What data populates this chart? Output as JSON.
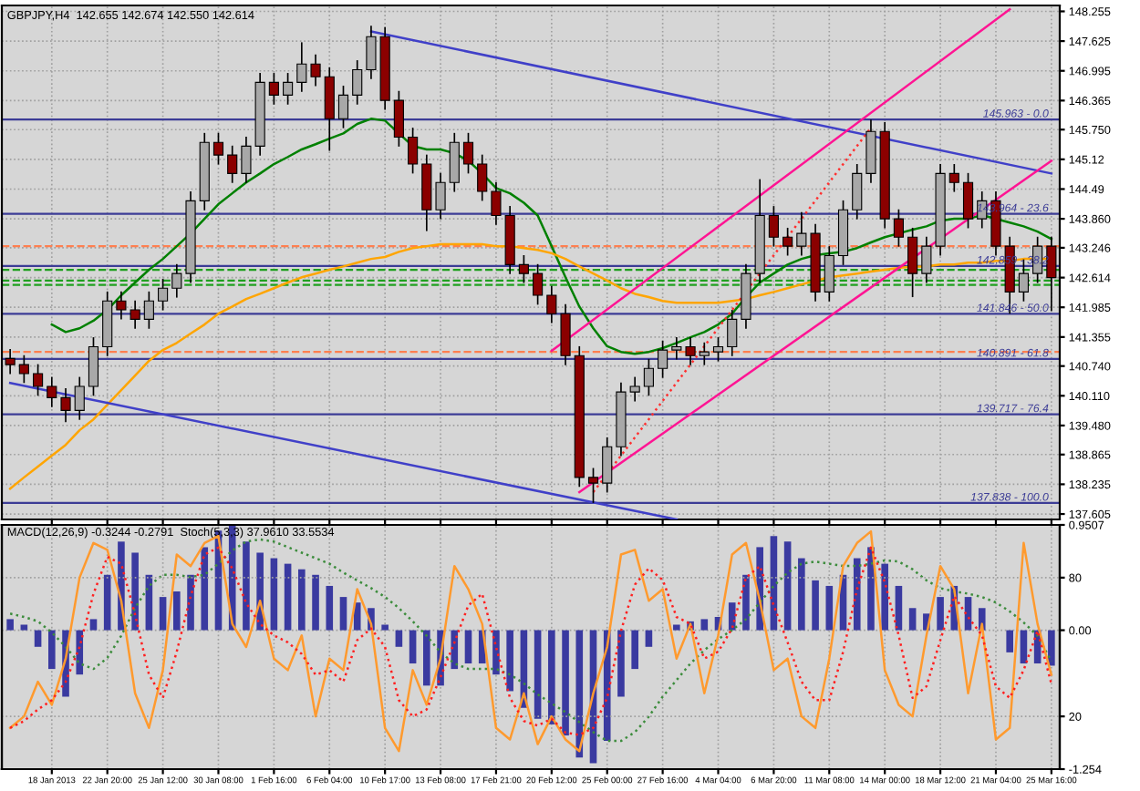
{
  "chart_data": [
    {
      "type": "candlestick",
      "title": "GBPJPY,H4  142.655 142.674 142.550 142.614",
      "categories": [
        null,
        null,
        null,
        null,
        null,
        null,
        null,
        null,
        null,
        null,
        null,
        null,
        null,
        null,
        null,
        null,
        null,
        null,
        null,
        null,
        null,
        null,
        null,
        null,
        null,
        null,
        null,
        null,
        null,
        null,
        null,
        null,
        null,
        null,
        null,
        null,
        null,
        null,
        null,
        null,
        null,
        null,
        null,
        null,
        null,
        null,
        null,
        null,
        null,
        null,
        null,
        null,
        null,
        null,
        null,
        null,
        null,
        null,
        null,
        null,
        null,
        null,
        null,
        null,
        null,
        null,
        null,
        null,
        null,
        null,
        null,
        null,
        null,
        null,
        null,
        null
      ],
      "ohlc": [
        [
          140.9,
          141.1,
          140.57,
          140.77
        ],
        [
          140.77,
          140.97,
          140.38,
          140.58
        ],
        [
          140.58,
          140.78,
          140.11,
          140.31
        ],
        [
          140.31,
          140.51,
          139.87,
          140.07
        ],
        [
          140.07,
          140.27,
          139.55,
          139.8
        ],
        [
          139.8,
          140.51,
          139.6,
          140.31
        ],
        [
          140.31,
          141.35,
          140.11,
          141.15
        ],
        [
          141.15,
          142.32,
          140.95,
          142.12
        ],
        [
          142.12,
          142.32,
          141.73,
          141.93
        ],
        [
          141.93,
          142.13,
          141.53,
          141.73
        ],
        [
          141.73,
          142.32,
          141.53,
          142.12
        ],
        [
          142.12,
          142.59,
          141.92,
          142.39
        ],
        [
          142.39,
          142.9,
          142.19,
          142.7
        ],
        [
          142.7,
          144.44,
          142.5,
          144.24
        ],
        [
          144.24,
          145.68,
          144.04,
          145.48
        ],
        [
          145.48,
          145.68,
          145.01,
          145.21
        ],
        [
          145.21,
          145.41,
          144.62,
          144.82
        ],
        [
          144.82,
          145.6,
          144.62,
          145.4
        ],
        [
          145.4,
          146.95,
          145.2,
          146.75
        ],
        [
          146.75,
          146.95,
          146.28,
          146.48
        ],
        [
          146.48,
          146.95,
          146.28,
          146.75
        ],
        [
          146.75,
          147.6,
          146.55,
          147.14
        ],
        [
          147.14,
          147.34,
          146.67,
          146.87
        ],
        [
          146.87,
          147.07,
          145.3,
          145.98
        ],
        [
          145.98,
          146.68,
          145.78,
          146.48
        ],
        [
          146.48,
          147.22,
          146.28,
          147.02
        ],
        [
          147.02,
          147.95,
          146.82,
          147.72
        ],
        [
          147.72,
          147.92,
          146.17,
          146.37
        ],
        [
          146.37,
          146.57,
          145.39,
          145.59
        ],
        [
          145.59,
          145.79,
          144.82,
          145.02
        ],
        [
          145.02,
          145.22,
          143.6,
          144.05
        ],
        [
          144.05,
          144.83,
          143.85,
          144.63
        ],
        [
          144.63,
          145.68,
          144.43,
          145.48
        ],
        [
          145.48,
          145.68,
          144.82,
          145.02
        ],
        [
          145.02,
          145.22,
          144.24,
          144.44
        ],
        [
          144.44,
          144.64,
          143.73,
          143.93
        ],
        [
          143.93,
          144.13,
          142.69,
          142.89
        ],
        [
          142.89,
          143.09,
          142.5,
          142.7
        ],
        [
          142.7,
          142.9,
          142.04,
          142.24
        ],
        [
          142.24,
          142.44,
          141.65,
          141.85
        ],
        [
          141.85,
          142.05,
          140.76,
          140.96
        ],
        [
          140.96,
          141.16,
          138.18,
          138.38
        ],
        [
          138.38,
          138.58,
          137.84,
          138.26
        ],
        [
          138.26,
          139.23,
          138.06,
          139.03
        ],
        [
          139.03,
          140.39,
          138.83,
          140.19
        ],
        [
          140.19,
          140.51,
          139.99,
          140.31
        ],
        [
          140.31,
          140.89,
          140.11,
          140.69
        ],
        [
          140.69,
          141.28,
          140.49,
          141.08
        ],
        [
          141.08,
          141.35,
          140.88,
          141.15
        ],
        [
          141.15,
          141.35,
          140.76,
          140.96
        ],
        [
          140.96,
          141.24,
          140.76,
          141.04
        ],
        [
          141.04,
          141.35,
          140.84,
          141.15
        ],
        [
          141.15,
          141.93,
          140.95,
          141.73
        ],
        [
          141.73,
          142.9,
          141.53,
          142.7
        ],
        [
          142.7,
          144.7,
          142.5,
          143.93
        ],
        [
          143.93,
          144.13,
          143.27,
          143.47
        ],
        [
          143.47,
          143.67,
          143.08,
          143.28
        ],
        [
          143.28,
          144.0,
          143.08,
          143.55
        ],
        [
          143.55,
          143.75,
          142.11,
          142.31
        ],
        [
          142.31,
          143.28,
          142.11,
          143.08
        ],
        [
          143.08,
          144.25,
          142.88,
          144.05
        ],
        [
          144.05,
          145.02,
          143.85,
          144.82
        ],
        [
          144.82,
          145.963,
          144.62,
          145.71
        ],
        [
          145.71,
          145.91,
          143.66,
          143.86
        ],
        [
          143.86,
          144.06,
          143.27,
          143.47
        ],
        [
          143.47,
          143.67,
          142.2,
          142.7
        ],
        [
          142.7,
          143.48,
          142.5,
          143.28
        ],
        [
          143.28,
          145.02,
          143.08,
          144.82
        ],
        [
          144.82,
          145.02,
          144.43,
          144.63
        ],
        [
          144.63,
          144.83,
          143.66,
          143.86
        ],
        [
          143.86,
          144.44,
          143.66,
          144.24
        ],
        [
          144.24,
          144.44,
          143.08,
          143.28
        ],
        [
          143.28,
          143.48,
          141.85,
          142.31
        ],
        [
          142.31,
          143.0,
          142.11,
          142.7
        ],
        [
          142.7,
          143.48,
          142.5,
          143.28
        ],
        [
          143.28,
          143.48,
          141.9,
          142.614
        ]
      ],
      "colors": [
        "#8b0000",
        "#8b0000",
        "#8b0000",
        "#8b0000",
        "#8b0000",
        "#a8a8a8",
        "#a8a8a8",
        "#a8a8a8",
        "#8b0000",
        "#8b0000",
        "#a8a8a8",
        "#a8a8a8",
        "#a8a8a8",
        "#a8a8a8",
        "#a8a8a8",
        "#8b0000",
        "#8b0000",
        "#a8a8a8",
        "#a8a8a8",
        "#8b0000",
        "#a8a8a8",
        "#a8a8a8",
        "#8b0000",
        "#8b0000",
        "#a8a8a8",
        "#a8a8a8",
        "#a8a8a8",
        "#8b0000",
        "#8b0000",
        "#8b0000",
        "#8b0000",
        "#a8a8a8",
        "#a8a8a8",
        "#8b0000",
        "#8b0000",
        "#8b0000",
        "#8b0000",
        "#8b0000",
        "#8b0000",
        "#8b0000",
        "#8b0000",
        "#8b0000",
        "#8b0000",
        "#a8a8a8",
        "#a8a8a8",
        "#a8a8a8",
        "#a8a8a8",
        "#a8a8a8",
        "#a8a8a8",
        "#8b0000",
        "#a8a8a8",
        "#a8a8a8",
        "#a8a8a8",
        "#a8a8a8",
        "#a8a8a8",
        "#8b0000",
        "#8b0000",
        "#a8a8a8",
        "#8b0000",
        "#a8a8a8",
        "#a8a8a8",
        "#a8a8a8",
        "#a8a8a8",
        "#8b0000",
        "#8b0000",
        "#8b0000",
        "#a8a8a8",
        "#a8a8a8",
        "#8b0000",
        "#8b0000",
        "#a8a8a8",
        "#8b0000",
        "#8b0000",
        "#a8a8a8",
        "#a8a8a8",
        "#8b0000"
      ],
      "series": [
        {
          "type": "line",
          "color": "#008000",
          "values": [
            null,
            null,
            null,
            141.62,
            141.46,
            141.54,
            141.7,
            141.93,
            142.24,
            142.51,
            142.78,
            143.01,
            143.28,
            143.55,
            143.86,
            144.17,
            144.4,
            144.63,
            144.82,
            145.02,
            145.17,
            145.33,
            145.44,
            145.56,
            145.67,
            145.87,
            145.98,
            145.94,
            145.67,
            145.4,
            145.33,
            145.33,
            145.25,
            145.09,
            144.82,
            144.51,
            144.4,
            144.2,
            143.93,
            143.28,
            142.62,
            142.0,
            141.54,
            141.16,
            141.04,
            141.0,
            141.04,
            141.12,
            141.23,
            141.35,
            141.46,
            141.62,
            141.85,
            142.2,
            142.51,
            142.7,
            142.89,
            143.01,
            143.09,
            143.13,
            143.16,
            143.24,
            143.36,
            143.47,
            143.55,
            143.63,
            143.7,
            143.82,
            143.86,
            143.86,
            143.94,
            null,
            143.78,
            143.7,
            143.59,
            143.43
          ]
        },
        {
          "type": "line",
          "color": "#ffa500",
          "values": [
            138.14,
            138.38,
            138.61,
            138.84,
            139.07,
            139.38,
            139.61,
            139.92,
            140.23,
            140.54,
            140.85,
            141.08,
            141.23,
            141.43,
            141.62,
            141.85,
            142.0,
            142.16,
            142.27,
            142.39,
            142.51,
            142.62,
            142.7,
            142.78,
            142.85,
            142.93,
            143.01,
            143.05,
            143.16,
            143.24,
            143.28,
            143.32,
            143.32,
            143.32,
            143.32,
            143.28,
            143.28,
            143.24,
            143.2,
            143.13,
            143.01,
            142.85,
            142.7,
            142.55,
            142.39,
            142.27,
            142.2,
            142.12,
            142.08,
            142.08,
            142.08,
            142.08,
            142.12,
            142.16,
            142.24,
            142.31,
            142.39,
            142.47,
            142.55,
            142.62,
            142.66,
            142.7,
            142.74,
            142.78,
            142.82,
            142.85,
            142.85,
            142.89,
            142.89,
            142.93,
            142.93,
            142.97,
            142.97,
            143.01,
            143.01,
            143.01
          ]
        },
        {
          "type": "line",
          "color": "#4040c8",
          "values": [
            null,
            null,
            null,
            null,
            null,
            null,
            null,
            null,
            null,
            null,
            null,
            null,
            null,
            null,
            null,
            null,
            null,
            null,
            null,
            null,
            null,
            null,
            null,
            null,
            null,
            null,
            147.83,
            null,
            null,
            null,
            null,
            null,
            null,
            null,
            null,
            null,
            null,
            null,
            null,
            null,
            null,
            null,
            null,
            null,
            null,
            null,
            null,
            null,
            null,
            null,
            null,
            null,
            null,
            null,
            null,
            null,
            null,
            null,
            null,
            null,
            null,
            null,
            null,
            null,
            null,
            null,
            null,
            null,
            null,
            null,
            null,
            null,
            null,
            null,
            null,
            144.82
          ]
        },
        {
          "type": "line",
          "color": "#4040c8",
          "values": [
            140.38,
            null,
            null,
            null,
            null,
            null,
            null,
            null,
            null,
            null,
            null,
            null,
            null,
            null,
            null,
            null,
            null,
            null,
            null,
            null,
            null,
            null,
            null,
            null,
            null,
            null,
            null,
            null,
            null,
            null,
            null,
            null,
            null,
            null,
            null,
            null,
            null,
            null,
            null,
            null,
            null,
            null,
            null,
            null,
            null,
            null,
            null,
            null,
            137.49,
            null,
            null,
            null,
            null,
            null,
            null,
            null,
            null,
            null,
            null,
            null,
            null,
            null,
            null,
            null,
            null,
            null,
            null,
            null,
            null,
            null,
            null,
            null,
            null,
            null,
            null,
            null
          ]
        },
        {
          "type": "line",
          "color": "#ff1493",
          "values": [
            null,
            null,
            null,
            null,
            null,
            null,
            null,
            null,
            null,
            null,
            null,
            null,
            null,
            null,
            null,
            null,
            null,
            null,
            null,
            null,
            null,
            null,
            null,
            null,
            null,
            null,
            null,
            null,
            null,
            null,
            null,
            null,
            null,
            null,
            null,
            null,
            null,
            null,
            null,
            141.06,
            null,
            null,
            null,
            null,
            null,
            null,
            null,
            null,
            null,
            null,
            null,
            null,
            null,
            null,
            null,
            null,
            null,
            null,
            null,
            null,
            null,
            null,
            null,
            null,
            null,
            null,
            null,
            null,
            null,
            null,
            null,
            null,
            148.3,
            null,
            null,
            null
          ]
        },
        {
          "type": "line",
          "color": "#ff1493",
          "values": [
            null,
            null,
            null,
            null,
            null,
            null,
            null,
            null,
            null,
            null,
            null,
            null,
            null,
            null,
            null,
            null,
            null,
            null,
            null,
            null,
            null,
            null,
            null,
            null,
            null,
            null,
            null,
            null,
            null,
            null,
            null,
            null,
            null,
            null,
            null,
            null,
            null,
            null,
            null,
            null,
            null,
            138.07,
            null,
            null,
            null,
            null,
            null,
            null,
            null,
            null,
            null,
            null,
            null,
            null,
            null,
            null,
            null,
            null,
            null,
            null,
            null,
            null,
            null,
            null,
            null,
            null,
            null,
            null,
            null,
            null,
            null,
            null,
            null,
            null,
            null,
            145.09
          ]
        },
        {
          "type": "line",
          "color": "#ff3030",
          "line_style": "dotted",
          "values": [
            null,
            null,
            null,
            null,
            null,
            null,
            null,
            null,
            null,
            null,
            null,
            null,
            null,
            null,
            null,
            null,
            null,
            null,
            null,
            null,
            null,
            null,
            null,
            null,
            null,
            null,
            null,
            null,
            null,
            null,
            null,
            null,
            null,
            null,
            null,
            null,
            null,
            null,
            null,
            null,
            null,
            null,
            138.07,
            null,
            null,
            null,
            null,
            null,
            null,
            null,
            null,
            null,
            null,
            null,
            null,
            null,
            null,
            null,
            null,
            null,
            null,
            null,
            145.79,
            null,
            null,
            null,
            null,
            null,
            null,
            null,
            null,
            null,
            null,
            null,
            null,
            null
          ]
        }
      ],
      "ref_lines": [
        {
          "axis": "y",
          "value": 145.963,
          "label": "145.963 - 0.0",
          "color": "#3c3c96"
        },
        {
          "axis": "y",
          "value": 143.964,
          "label": "143.964 - 23.6",
          "color": "#3c3c96"
        },
        {
          "axis": "y",
          "value": 142.859,
          "label": "142.859 - 38.2",
          "color": "#3c3c96"
        },
        {
          "axis": "y",
          "value": 141.846,
          "label": "141.846 - 50.0",
          "color": "#3c3c96"
        },
        {
          "axis": "y",
          "value": 140.891,
          "label": "140.891 - 61.8",
          "color": "#3c3c96"
        },
        {
          "axis": "y",
          "value": 139.717,
          "label": "139.717 - 76.4",
          "color": "#3c3c96"
        },
        {
          "axis": "y",
          "value": 137.838,
          "label": "137.838 - 100.0",
          "color": "#3c3c96"
        },
        {
          "axis": "y",
          "value": 143.28,
          "color": "#ff7f50",
          "line_style": "dashed"
        },
        {
          "axis": "y",
          "value": 141.04,
          "color": "#ff7f50",
          "line_style": "dashed"
        },
        {
          "axis": "y",
          "value": 142.78,
          "color": "#20a020",
          "line_style": "dashed"
        },
        {
          "axis": "y",
          "value": 142.55,
          "color": "#20a020",
          "line_style": "dashed"
        },
        {
          "axis": "y",
          "value": 142.46,
          "color": "#20a020",
          "line_style": "dashed"
        }
      ],
      "ylim": [
        137.49,
        148.38
      ],
      "yticks": [
        {
          "value": 148.255,
          "label": "148.255"
        },
        147.625,
        146.995,
        146.365,
        {
          "value": 145.75,
          "label": "145.750"
        },
        145.12,
        144.49,
        {
          "value": 143.86,
          "label": "143.860"
        },
        143.246,
        {
          "value": 142.614,
          "label": "142.614"
        },
        141.985,
        141.355,
        {
          "value": 140.74,
          "label": "140.740"
        },
        {
          "value": 140.11,
          "label": "140.110"
        },
        {
          "value": 139.48,
          "label": "139.480"
        },
        138.865,
        138.235,
        137.605
      ],
      "tick_labels": "y",
      "grid": true
    },
    {
      "type": "bar",
      "title": "MACD(12,26,9) -0.3244 -0.2791  Stoch(5,3,3) 37.9610 33.5534",
      "categories": [
        null,
        null,
        null,
        "18 Jan 2013",
        null,
        null,
        null,
        "22 Jan 20:00",
        null,
        null,
        null,
        "25 Jan 12:00",
        null,
        null,
        null,
        "30 Jan 08:00",
        null,
        null,
        null,
        "1 Feb 16:00",
        null,
        null,
        null,
        "6 Feb 04:00",
        null,
        null,
        null,
        "10 Feb 17:00",
        null,
        null,
        null,
        "13 Feb 08:00",
        null,
        null,
        null,
        "17 Feb 21:00",
        null,
        null,
        null,
        "20 Feb 12:00",
        null,
        null,
        null,
        "25 Feb 00:00",
        null,
        null,
        null,
        "27 Feb 16:00",
        null,
        null,
        null,
        "4 Mar 04:00",
        null,
        null,
        null,
        "6 Mar 20:00",
        null,
        null,
        null,
        "11 Mar 08:00",
        null,
        null,
        null,
        "14 Mar 00:00",
        null,
        null,
        null,
        "18 Mar 12:00",
        null,
        null,
        null,
        "21 Mar 04:00",
        null,
        null,
        null,
        "25 Mar 16:00"
      ],
      "series": [
        {
          "type": "bar",
          "color": "#3a3aa0",
          "values": [
            0.1,
            0.05,
            -0.15,
            -0.35,
            -0.6,
            -0.4,
            0.1,
            0.5,
            0.8,
            0.7,
            0.5,
            0.3,
            0.35,
            0.5,
            0.75,
            0.9,
            0.95,
            0.8,
            0.7,
            0.65,
            0.6,
            0.55,
            0.5,
            0.4,
            0.3,
            0.25,
            0.2,
            0.05,
            -0.15,
            -0.3,
            -0.5,
            -0.5,
            -0.35,
            -0.3,
            -0.3,
            -0.4,
            -0.55,
            -0.7,
            -0.8,
            -0.85,
            -0.95,
            -1.15,
            -1.2,
            -1.0,
            -0.6,
            -0.35,
            -0.15,
            0.0,
            0.05,
            0.08,
            0.1,
            0.12,
            0.25,
            0.5,
            0.75,
            0.85,
            0.8,
            0.65,
            0.45,
            0.4,
            0.5,
            0.65,
            0.75,
            0.6,
            0.4,
            0.2,
            0.15,
            0.3,
            0.4,
            0.3,
            0.2,
            0.0,
            -0.2,
            -0.3,
            -0.3,
            -0.32
          ]
        },
        {
          "type": "line",
          "color": "#3c8c3c",
          "line_style": "dotted",
          "values": [
            0.15,
            0.12,
            0.08,
            -0.02,
            -0.15,
            -0.3,
            -0.35,
            -0.25,
            -0.05,
            0.2,
            0.4,
            0.5,
            0.5,
            0.48,
            0.5,
            0.6,
            0.72,
            0.8,
            0.82,
            0.8,
            0.75,
            0.7,
            0.65,
            0.6,
            0.52,
            0.45,
            0.38,
            0.3,
            0.2,
            0.08,
            -0.05,
            -0.2,
            -0.3,
            -0.35,
            -0.35,
            -0.35,
            -0.4,
            -0.48,
            -0.58,
            -0.66,
            -0.74,
            -0.83,
            -0.92,
            -1.0,
            -1.0,
            -0.92,
            -0.78,
            -0.6,
            -0.45,
            -0.3,
            -0.18,
            -0.08,
            0.0,
            0.1,
            0.25,
            0.4,
            0.52,
            0.6,
            0.62,
            0.6,
            0.58,
            0.58,
            0.6,
            0.63,
            0.62,
            0.55,
            0.45,
            0.38,
            0.35,
            0.33,
            0.3,
            0.25,
            0.17,
            0.07,
            -0.05,
            -0.28
          ]
        },
        {
          "type": "line",
          "color": "#ff9a2e",
          "axis": "y2",
          "values": [
            15,
            20,
            35,
            25,
            45,
            80,
            95,
            92,
            70,
            30,
            15,
            40,
            90,
            85,
            95,
            98,
            60,
            50,
            70,
            45,
            40,
            55,
            20,
            45,
            40,
            75,
            60,
            15,
            5,
            40,
            25,
            45,
            85,
            75,
            60,
            15,
            10,
            30,
            8,
            20,
            10,
            5,
            30,
            50,
            90,
            92,
            70,
            75,
            45,
            60,
            30,
            55,
            90,
            95,
            70,
            40,
            45,
            20,
            15,
            45,
            85,
            95,
            100,
            40,
            25,
            20,
            55,
            85,
            75,
            30,
            60,
            10,
            15,
            95,
            60,
            38
          ]
        },
        {
          "type": "line",
          "color": "#ff2020",
          "axis": "y2",
          "line_style": "dotted",
          "values": [
            15,
            18,
            23,
            27,
            35,
            50,
            73,
            89,
            86,
            64,
            38,
            28,
            48,
            72,
            90,
            93,
            84,
            69,
            60,
            55,
            52,
            47,
            38,
            40,
            35,
            53,
            58,
            50,
            27,
            20,
            23,
            37,
            52,
            68,
            73,
            50,
            28,
            18,
            16,
            19,
            13,
            12,
            15,
            28,
            57,
            77,
            84,
            79,
            63,
            60,
            45,
            48,
            58,
            80,
            85,
            68,
            52,
            35,
            27,
            27,
            48,
            75,
            93,
            78,
            55,
            28,
            33,
            53,
            72,
            63,
            55,
            33,
            28,
            40,
            57,
            34
          ]
        }
      ],
      "ylim": [
        -1.254,
        0.9507
      ],
      "yticks": [
        0.9507,
        {
          "value": 0,
          "label": "0.00"
        },
        -1.254
      ],
      "y2lim": [
        -2.8,
        102.8
      ],
      "y2ticks": [
        80,
        20
      ],
      "grid": true
    }
  ]
}
